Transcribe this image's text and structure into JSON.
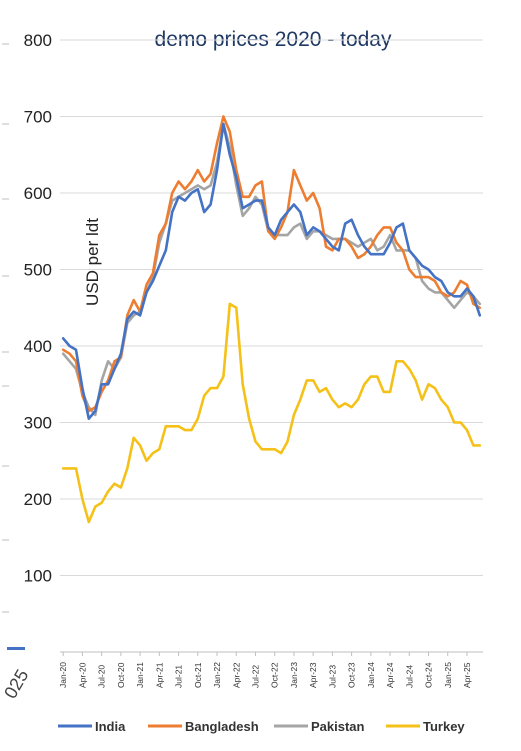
{
  "edge_fragment": "025",
  "chart_data": {
    "type": "line",
    "title": "demo prices 2020 - today",
    "xlabel": "",
    "ylabel": "USD per ldt",
    "ylim": [
      0,
      800
    ],
    "yticks": [
      "100",
      "200",
      "300",
      "400",
      "500",
      "600",
      "700",
      "800"
    ],
    "grid": true,
    "legend_position": "bottom",
    "x": [
      "Jan-20",
      "Feb-20",
      "Mar-20",
      "Apr-20",
      "May-20",
      "Jun-20",
      "Jul-20",
      "Aug-20",
      "Sep-20",
      "Oct-20",
      "Nov-20",
      "Dec-20",
      "Jan-21",
      "Feb-21",
      "Mar-21",
      "Apr-21",
      "May-21",
      "Jun-21",
      "Jul-21",
      "Aug-21",
      "Sep-21",
      "Oct-21",
      "Nov-21",
      "Dec-21",
      "Jan-22",
      "Feb-22",
      "Mar-22",
      "Apr-22",
      "May-22",
      "Jun-22",
      "Jul-22",
      "Aug-22",
      "Sep-22",
      "Oct-22",
      "Nov-22",
      "Dec-22",
      "Jan-23",
      "Feb-23",
      "Mar-23",
      "Apr-23",
      "May-23",
      "Jun-23",
      "Jul-23",
      "Aug-23",
      "Sep-23",
      "Oct-23",
      "Nov-23",
      "Dec-23",
      "Jan-24",
      "Feb-24",
      "Mar-24",
      "Apr-24",
      "May-24",
      "Jun-24",
      "Jul-24",
      "Aug-24",
      "Sep-24",
      "Oct-24",
      "Nov-24",
      "Dec-24",
      "Jan-25",
      "Feb-25",
      "Mar-25",
      "Apr-25",
      "May-25",
      "Jun-25"
    ],
    "xtick_labels": [
      "Jan-20",
      "Apr-20",
      "Jul-20",
      "Oct-20",
      "Jan-21",
      "Apr-21",
      "Jul-21",
      "Oct-21",
      "Jan-22",
      "Apr-22",
      "Jul-22",
      "Oct-22",
      "Jan-23",
      "Apr-23",
      "Jul-23",
      "Oct-23",
      "Jan-24",
      "Apr-24",
      "Jul-24",
      "Oct-24",
      "Jan-25",
      "Apr-25"
    ],
    "series": [
      {
        "name": "India",
        "color": "#4472c4",
        "values": [
          410,
          400,
          395,
          345,
          305,
          315,
          350,
          350,
          370,
          390,
          435,
          445,
          440,
          470,
          485,
          505,
          525,
          575,
          595,
          590,
          600,
          605,
          575,
          585,
          630,
          690,
          650,
          620,
          580,
          585,
          590,
          590,
          555,
          545,
          565,
          575,
          585,
          575,
          545,
          555,
          550,
          540,
          530,
          525,
          560,
          565,
          545,
          530,
          520,
          520,
          520,
          535,
          555,
          560,
          525,
          515,
          505,
          500,
          490,
          485,
          470,
          465,
          465,
          475,
          465,
          440
        ]
      },
      {
        "name": "Bangladesh",
        "color": "#ed7d31",
        "values": [
          395,
          390,
          380,
          335,
          315,
          320,
          340,
          355,
          380,
          385,
          440,
          460,
          445,
          480,
          495,
          545,
          560,
          600,
          615,
          605,
          615,
          630,
          615,
          625,
          665,
          700,
          680,
          630,
          595,
          595,
          610,
          615,
          550,
          540,
          555,
          575,
          630,
          610,
          590,
          600,
          580,
          530,
          525,
          540,
          540,
          530,
          515,
          520,
          530,
          545,
          555,
          555,
          535,
          525,
          500,
          490,
          490,
          490,
          485,
          470,
          465,
          470,
          485,
          480,
          455,
          450
        ]
      },
      {
        "name": "Pakistan",
        "color": "#a5a5a5",
        "values": [
          390,
          380,
          370,
          340,
          320,
          310,
          355,
          380,
          370,
          385,
          430,
          440,
          445,
          470,
          490,
          535,
          560,
          590,
          595,
          600,
          605,
          610,
          605,
          610,
          640,
          690,
          660,
          610,
          570,
          580,
          595,
          585,
          550,
          545,
          545,
          545,
          555,
          560,
          540,
          550,
          550,
          545,
          540,
          540,
          540,
          535,
          530,
          535,
          540,
          525,
          530,
          545,
          525,
          525,
          525,
          515,
          485,
          475,
          470,
          470,
          460,
          450,
          460,
          470,
          465,
          455
        ]
      },
      {
        "name": "Turkey",
        "color": "#f5c118",
        "values": [
          240,
          240,
          240,
          200,
          170,
          190,
          195,
          210,
          220,
          215,
          240,
          280,
          270,
          250,
          260,
          265,
          295,
          295,
          295,
          290,
          290,
          305,
          335,
          345,
          345,
          360,
          455,
          450,
          350,
          305,
          275,
          265,
          265,
          265,
          260,
          275,
          310,
          330,
          355,
          355,
          340,
          345,
          330,
          320,
          325,
          320,
          330,
          350,
          360,
          360,
          340,
          340,
          380,
          380,
          370,
          355,
          330,
          350,
          345,
          330,
          320,
          300,
          300,
          290,
          270,
          270
        ]
      }
    ]
  }
}
